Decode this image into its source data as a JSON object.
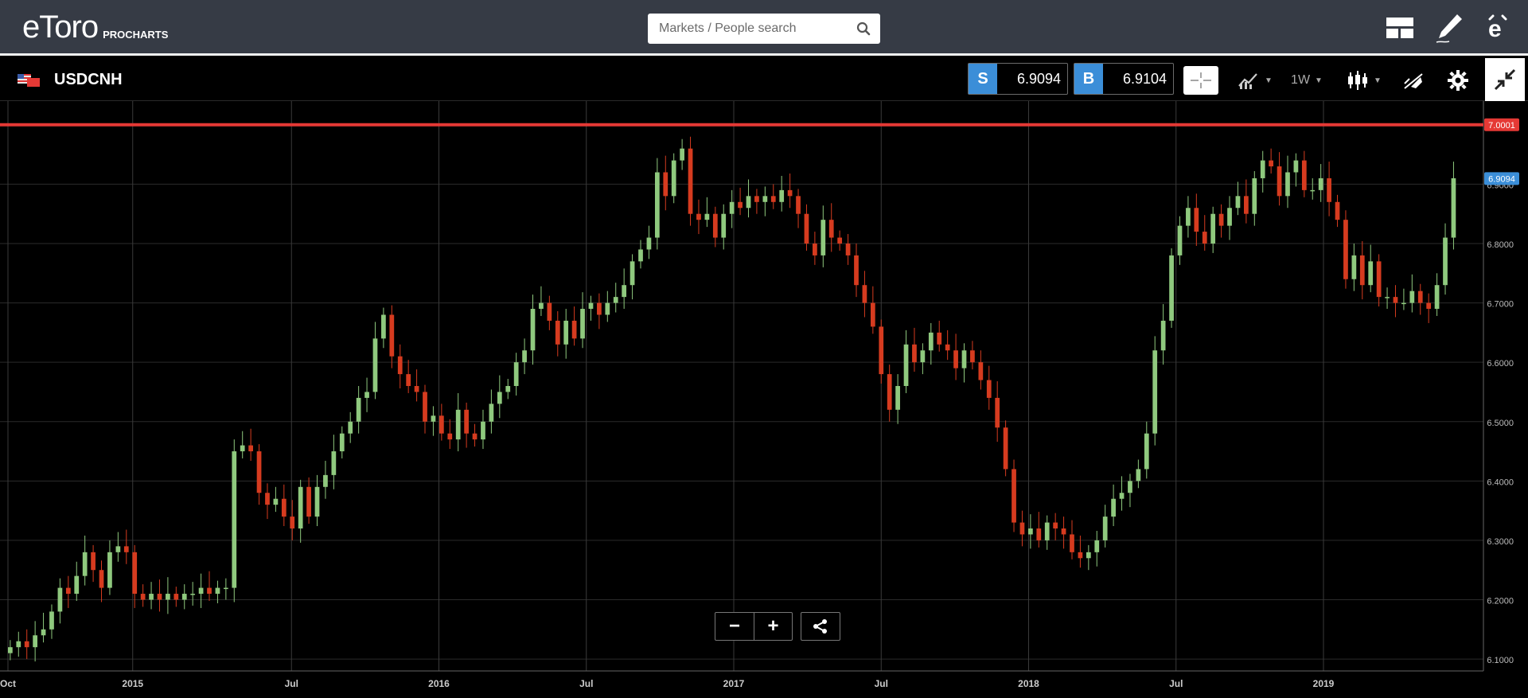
{
  "app": {
    "logo_text": "eToro",
    "logo_sub": "PROCHARTS"
  },
  "search": {
    "placeholder": "Markets / People search"
  },
  "header_icons": [
    "layout-icon",
    "pencil-icon",
    "etoro-e-icon"
  ],
  "instrument": {
    "symbol": "USDCNH",
    "flag": "us-cn-flag"
  },
  "sell": {
    "letter": "S",
    "price": "6.9094"
  },
  "buy": {
    "letter": "B",
    "price": "6.9104"
  },
  "toolbar": {
    "timeframe": "1W"
  },
  "chart_data": {
    "type": "candlestick",
    "symbol": "USDCNH",
    "interval": "1W",
    "ylim": [
      6.08,
      7.04
    ],
    "y_ticks": [
      "7.0000",
      "6.9000",
      "6.8000",
      "6.7000",
      "6.6000",
      "6.5000",
      "6.4000",
      "6.3000",
      "6.2000",
      "6.1000"
    ],
    "y_tick_values": [
      7.0,
      6.9,
      6.8,
      6.7,
      6.6,
      6.5,
      6.4,
      6.3,
      6.2,
      6.1
    ],
    "x_ticks": [
      "Oct",
      "2015",
      "Jul",
      "2016",
      "Jul",
      "2017",
      "Jul",
      "2018",
      "Jul",
      "2019"
    ],
    "x_tick_values": [
      0,
      11,
      25,
      38,
      51,
      64,
      77,
      90,
      103,
      116
    ],
    "x_max_week": 128,
    "hline": {
      "value": 7.0001,
      "label": "7.0001",
      "color": "#e53935"
    },
    "last_price": {
      "value": 6.9094,
      "label": "6.9094",
      "color": "#3b8ed8"
    },
    "up_color": "#8fc97e",
    "down_color": "#d63b1f",
    "grid": true,
    "gaps": [
      {
        "after_week": 11,
        "weeks": 3
      },
      {
        "after_week": 38,
        "weeks": 2
      }
    ],
    "closes": [
      6.12,
      6.13,
      6.12,
      6.14,
      6.15,
      6.18,
      6.22,
      6.21,
      6.24,
      6.28,
      6.25,
      6.22,
      6.28,
      6.29,
      6.28,
      6.21,
      6.2,
      6.21,
      6.2,
      6.21,
      6.2,
      6.21,
      6.21,
      6.22,
      6.21,
      6.22,
      6.22,
      6.45,
      6.46,
      6.45,
      6.38,
      6.36,
      6.37,
      6.34,
      6.32,
      6.39,
      6.34,
      6.39,
      6.41,
      6.45,
      6.48,
      6.5,
      6.54,
      6.55,
      6.64,
      6.68,
      6.61,
      6.58,
      6.56,
      6.55,
      6.5,
      6.51,
      6.48,
      6.47,
      6.52,
      6.48,
      6.47,
      6.5,
      6.53,
      6.55,
      6.56,
      6.6,
      6.62,
      6.69,
      6.7,
      6.67,
      6.63,
      6.67,
      6.64,
      6.69,
      6.7,
      6.68,
      6.7,
      6.71,
      6.73,
      6.77,
      6.79,
      6.81,
      6.92,
      6.88,
      6.94,
      6.96,
      6.85,
      6.84,
      6.85,
      6.81,
      6.85,
      6.87,
      6.86,
      6.88,
      6.87,
      6.88,
      6.87,
      6.89,
      6.88,
      6.85,
      6.8,
      6.78,
      6.84,
      6.81,
      6.8,
      6.78,
      6.73,
      6.7,
      6.66,
      6.58,
      6.52,
      6.56,
      6.63,
      6.6,
      6.62,
      6.65,
      6.63,
      6.62,
      6.59,
      6.62,
      6.6,
      6.57,
      6.54,
      6.49,
      6.42,
      6.33,
      6.31,
      6.32,
      6.3,
      6.33,
      6.32,
      6.31,
      6.28,
      6.27,
      6.28,
      6.3,
      6.34,
      6.37,
      6.38,
      6.4,
      6.42,
      6.48,
      6.62,
      6.67,
      6.78,
      6.83,
      6.86,
      6.82,
      6.8,
      6.85,
      6.83,
      6.86,
      6.88,
      6.85,
      6.91,
      6.94,
      6.93,
      6.88,
      6.92,
      6.94,
      6.89,
      6.89,
      6.91,
      6.87,
      6.84,
      6.74,
      6.78,
      6.73,
      6.77,
      6.71,
      6.71,
      6.7,
      6.7,
      6.72,
      6.7,
      6.69,
      6.73,
      6.81,
      6.91
    ]
  }
}
